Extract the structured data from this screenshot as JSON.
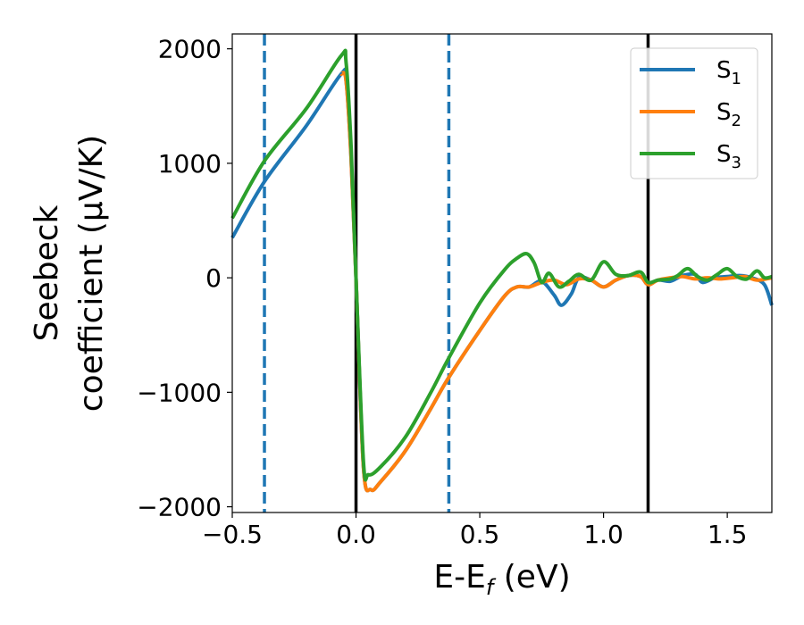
{
  "chart_data": {
    "type": "line",
    "xlabel": "E-E",
    "xlabel_sub": "f",
    "xlabel_unit": " (eV)",
    "ylabel_line1": "Seebeck",
    "ylabel_line2": "coefficient  (μV/K)",
    "xlim": [
      -0.5,
      1.68
    ],
    "ylim": [
      -2050,
      2130
    ],
    "x_ticks": [
      -0.5,
      0.0,
      0.5,
      1.0,
      1.5
    ],
    "x_tick_labels": [
      "−0.5",
      "0.0",
      "0.5",
      "1.0",
      "1.5"
    ],
    "y_ticks": [
      -2000,
      -1000,
      0,
      1000,
      2000
    ],
    "y_tick_labels": [
      "−2000",
      "−1000",
      "0",
      "1000",
      "2000"
    ],
    "legend_position": "top-right",
    "vlines": [
      {
        "x": -0.37,
        "style": "dashed",
        "color": "#1f77b4"
      },
      {
        "x": 0.0,
        "style": "solid",
        "color": "#000000"
      },
      {
        "x": 0.375,
        "style": "dashed",
        "color": "#1f77b4"
      },
      {
        "x": 1.18,
        "style": "solid",
        "color": "#000000"
      }
    ],
    "series": [
      {
        "name": "S",
        "sub": "1",
        "color": "#1f77b4",
        "x": [
          -0.5,
          -0.37,
          -0.2,
          -0.06,
          -0.04,
          -0.02,
          0.0,
          0.03,
          0.06,
          0.1,
          0.2,
          0.3,
          0.375,
          0.5,
          0.6,
          0.65,
          0.7,
          0.75,
          0.8,
          0.83,
          0.87,
          0.9,
          0.95,
          1.0,
          1.05,
          1.1,
          1.15,
          1.18,
          1.22,
          1.27,
          1.32,
          1.37,
          1.4,
          1.45,
          1.5,
          1.55,
          1.6,
          1.65,
          1.68
        ],
        "y": [
          350,
          840,
          1330,
          1780,
          1720,
          1050,
          0,
          -1650,
          -1850,
          -1780,
          -1510,
          -1150,
          -870,
          -460,
          -160,
          -80,
          -80,
          -30,
          -150,
          -240,
          -140,
          0,
          -20,
          -80,
          -20,
          20,
          10,
          -60,
          -20,
          -30,
          20,
          30,
          -40,
          0,
          10,
          20,
          0,
          -60,
          -240
        ]
      },
      {
        "name": "S",
        "sub": "2",
        "color": "#ff7f0e",
        "x": [
          -0.06,
          -0.04,
          -0.02,
          0.0,
          0.03,
          0.06,
          0.1,
          0.2,
          0.3,
          0.375,
          0.5,
          0.6,
          0.65,
          0.7,
          0.75,
          0.8,
          0.85,
          0.9,
          0.95,
          1.0,
          1.05,
          1.1,
          1.15,
          1.18,
          1.22,
          1.27,
          1.32,
          1.37,
          1.42,
          1.47,
          1.52,
          1.57,
          1.62,
          1.68
        ],
        "y": [
          1780,
          1720,
          1050,
          0,
          -1650,
          -1850,
          -1780,
          -1510,
          -1150,
          -870,
          -460,
          -160,
          -80,
          -80,
          -40,
          -20,
          -60,
          -10,
          -20,
          -80,
          -20,
          20,
          10,
          -60,
          -20,
          0,
          10,
          -10,
          0,
          -10,
          0,
          10,
          -20,
          0
        ]
      },
      {
        "name": "S",
        "sub": "3",
        "color": "#2ca02c",
        "x": [
          -0.5,
          -0.37,
          -0.2,
          -0.06,
          -0.04,
          -0.02,
          0.0,
          0.03,
          0.05,
          0.1,
          0.2,
          0.3,
          0.375,
          0.5,
          0.6,
          0.65,
          0.69,
          0.72,
          0.75,
          0.78,
          0.82,
          0.86,
          0.9,
          0.95,
          1.0,
          1.05,
          1.1,
          1.15,
          1.18,
          1.22,
          1.27,
          1.3,
          1.34,
          1.38,
          1.42,
          1.46,
          1.5,
          1.54,
          1.58,
          1.62,
          1.65,
          1.68
        ],
        "y": [
          520,
          1020,
          1480,
          1940,
          1880,
          1150,
          0,
          -1600,
          -1720,
          -1650,
          -1390,
          -1010,
          -700,
          -220,
          70,
          170,
          210,
          130,
          -40,
          40,
          -80,
          -30,
          30,
          -20,
          140,
          30,
          20,
          50,
          -40,
          -20,
          -10,
          20,
          80,
          10,
          -20,
          30,
          80,
          10,
          -10,
          60,
          0,
          10
        ]
      }
    ]
  }
}
